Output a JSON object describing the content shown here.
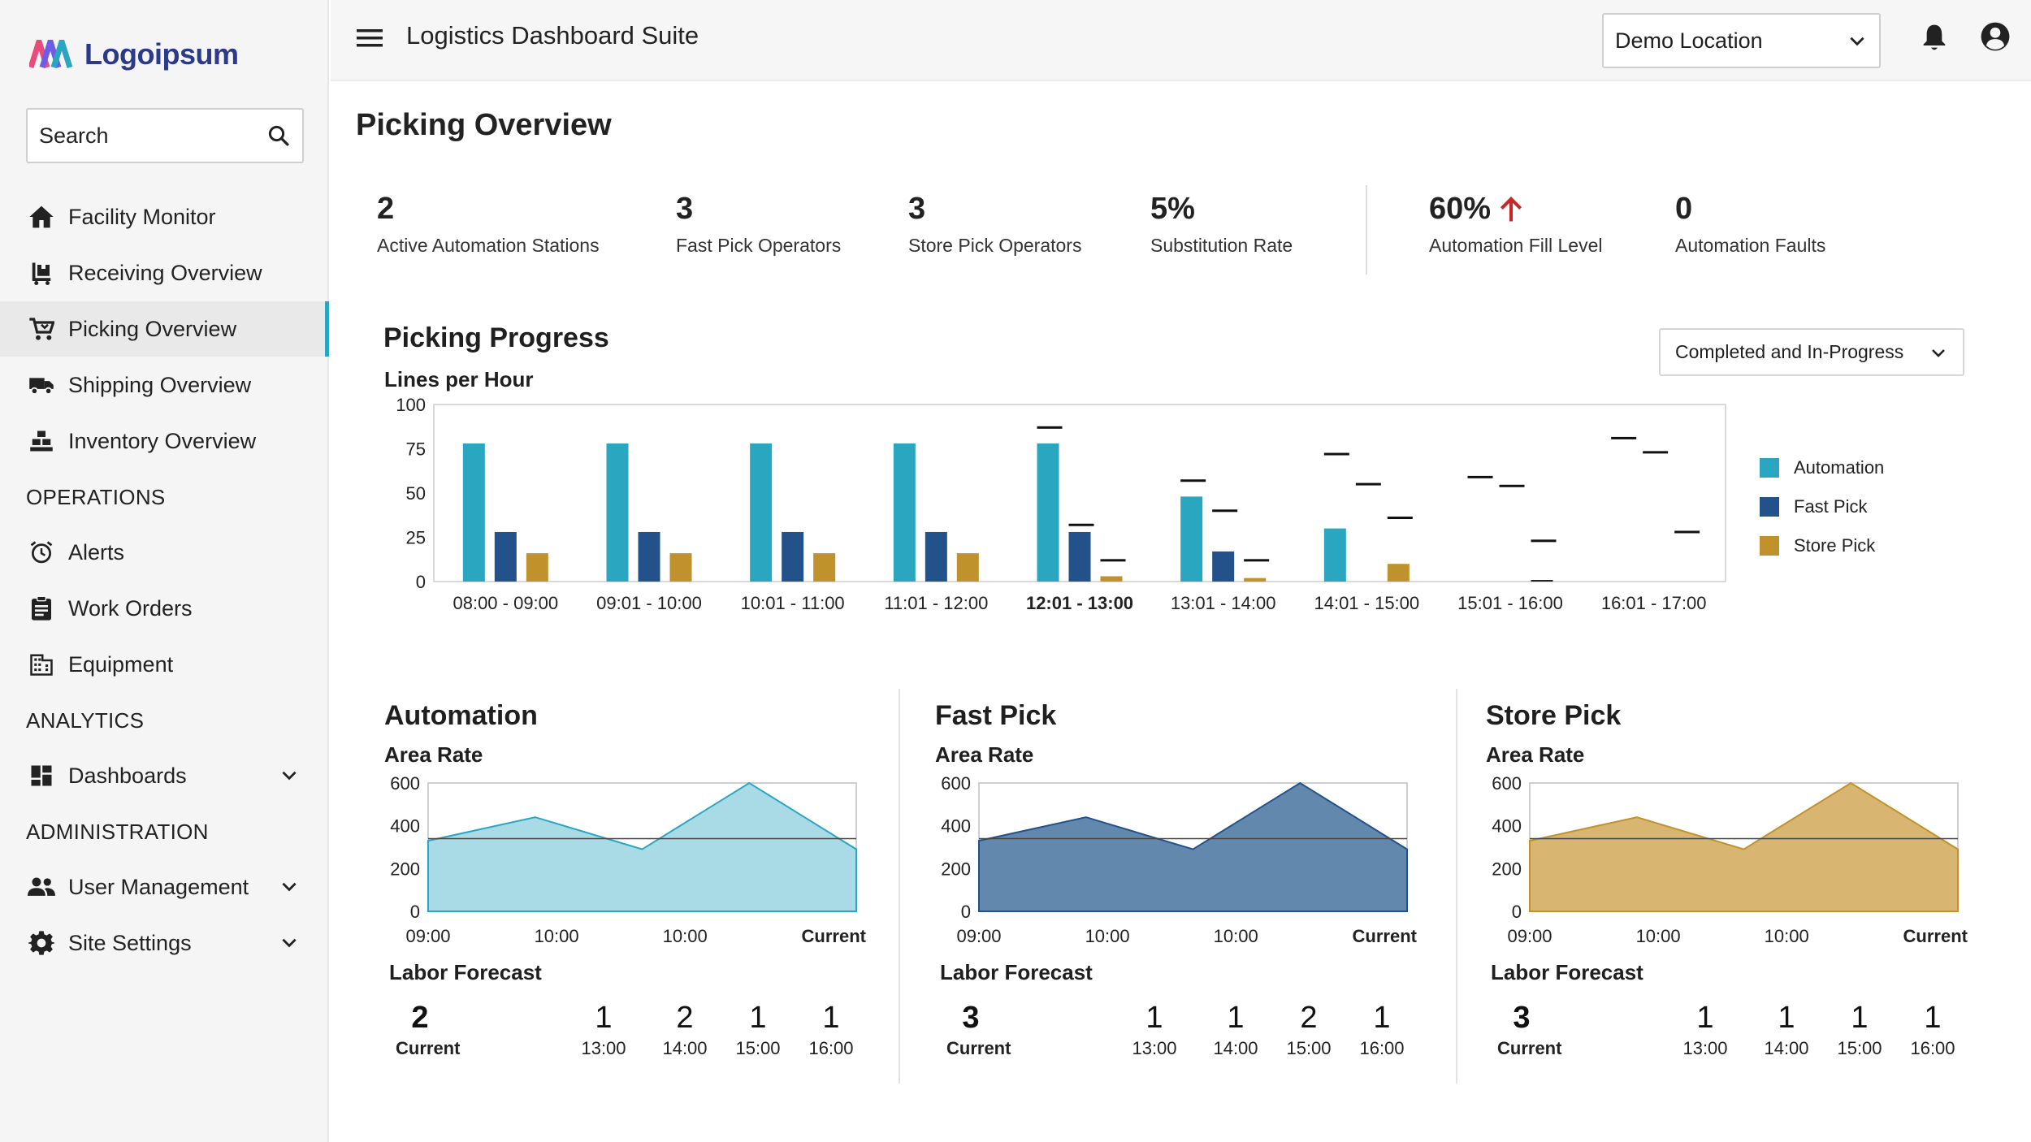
{
  "brand": {
    "name": "Logoipsum"
  },
  "sidebar": {
    "search_placeholder": "Search",
    "items": [
      {
        "label": "Facility Monitor"
      },
      {
        "label": "Receiving Overview"
      },
      {
        "label": "Picking Overview"
      },
      {
        "label": "Shipping Overview"
      },
      {
        "label": "Inventory Overview"
      }
    ],
    "sections": {
      "operations": "OPERATIONS",
      "analytics": "ANALYTICS",
      "administration": "ADMINISTRATION"
    },
    "operations_items": [
      {
        "label": "Alerts"
      },
      {
        "label": "Work Orders"
      },
      {
        "label": "Equipment"
      }
    ],
    "analytics_items": [
      {
        "label": "Dashboards"
      }
    ],
    "admin_items": [
      {
        "label": "User Management"
      },
      {
        "label": "Site Settings"
      }
    ]
  },
  "header": {
    "app_title": "Logistics Dashboard Suite",
    "location": "Demo Location"
  },
  "page": {
    "title": "Picking Overview"
  },
  "kpis": [
    {
      "value": "2",
      "label": "Active Automation Stations"
    },
    {
      "value": "3",
      "label": "Fast Pick Operators"
    },
    {
      "value": "3",
      "label": "Store Pick Operators"
    },
    {
      "value": "5%",
      "label": "Substitution Rate"
    },
    {
      "value": "60%",
      "label": "Automation Fill Level"
    },
    {
      "value": "0",
      "label": "Automation Faults"
    }
  ],
  "colors": {
    "automation": "#2aa6c0",
    "fast_pick": "#23528a",
    "store_pick": "#c0922e",
    "trend_up": "#c62828"
  },
  "progress": {
    "title": "Picking Progress",
    "filter": "Completed and In-Progress"
  },
  "chart_data": [
    {
      "type": "bar",
      "title": "Picking Progress",
      "ylabel": "Lines per Hour",
      "ylim": [
        0,
        100
      ],
      "yticks": [
        0,
        25,
        50,
        75,
        100
      ],
      "categories": [
        "08:00 - 09:00",
        "09:01 - 10:00",
        "10:01 - 11:00",
        "11:01 - 12:00",
        "12:01 - 13:00",
        "13:01 - 14:00",
        "14:01 - 15:00",
        "15:01 - 16:00",
        "16:01 - 17:00"
      ],
      "current_index": 4,
      "series": [
        {
          "name": "Automation",
          "values": [
            78,
            78,
            78,
            78,
            78,
            48,
            30,
            null,
            null
          ],
          "targets": [
            null,
            null,
            null,
            null,
            87,
            57,
            72,
            59,
            81
          ]
        },
        {
          "name": "Fast Pick",
          "values": [
            28,
            28,
            28,
            28,
            28,
            17,
            null,
            null,
            null
          ],
          "targets": [
            null,
            null,
            null,
            null,
            32,
            40,
            55,
            54,
            73
          ]
        },
        {
          "name": "Store Pick",
          "values": [
            16,
            16,
            16,
            16,
            3,
            2,
            10,
            0,
            null
          ],
          "targets": [
            null,
            null,
            null,
            null,
            12,
            12,
            36,
            23,
            28
          ]
        }
      ],
      "legend": [
        "Automation",
        "Fast Pick",
        "Store Pick"
      ]
    },
    {
      "type": "area",
      "title": "Automation",
      "subtitle": "Area Rate",
      "ylim": [
        0,
        600
      ],
      "yticks": [
        0,
        200,
        400,
        600
      ],
      "x_labels": [
        "09:00",
        "10:00",
        "10:00",
        "Current"
      ],
      "values": [
        330,
        440,
        290,
        620,
        290
      ],
      "target": 340
    },
    {
      "type": "area",
      "title": "Fast Pick",
      "subtitle": "Area Rate",
      "ylim": [
        0,
        600
      ],
      "yticks": [
        0,
        200,
        400,
        600
      ],
      "x_labels": [
        "09:00",
        "10:00",
        "10:00",
        "Current"
      ],
      "values": [
        330,
        440,
        290,
        620,
        290
      ],
      "target": 340
    },
    {
      "type": "area",
      "title": "Store Pick",
      "subtitle": "Area Rate",
      "ylim": [
        0,
        600
      ],
      "yticks": [
        0,
        200,
        400,
        600
      ],
      "x_labels": [
        "09:00",
        "10:00",
        "10:00",
        "Current"
      ],
      "values": [
        330,
        440,
        290,
        620,
        290
      ],
      "target": 340
    }
  ],
  "panels": [
    {
      "title": "Automation",
      "subtitle": "Area Rate",
      "forecast_title": "Labor Forecast",
      "current": {
        "value": "2",
        "label": "Current"
      },
      "forecast": [
        {
          "value": "1",
          "time": "13:00"
        },
        {
          "value": "2",
          "time": "14:00"
        },
        {
          "value": "1",
          "time": "15:00"
        },
        {
          "value": "1",
          "time": "16:00"
        }
      ]
    },
    {
      "title": "Fast Pick",
      "subtitle": "Area Rate",
      "forecast_title": "Labor Forecast",
      "current": {
        "value": "3",
        "label": "Current"
      },
      "forecast": [
        {
          "value": "1",
          "time": "13:00"
        },
        {
          "value": "1",
          "time": "14:00"
        },
        {
          "value": "2",
          "time": "15:00"
        },
        {
          "value": "1",
          "time": "16:00"
        }
      ]
    },
    {
      "title": "Store Pick",
      "subtitle": "Area Rate",
      "forecast_title": "Labor Forecast",
      "current": {
        "value": "3",
        "label": "Current"
      },
      "forecast": [
        {
          "value": "1",
          "time": "13:00"
        },
        {
          "value": "1",
          "time": "14:00"
        },
        {
          "value": "1",
          "time": "15:00"
        },
        {
          "value": "1",
          "time": "16:00"
        }
      ]
    }
  ]
}
